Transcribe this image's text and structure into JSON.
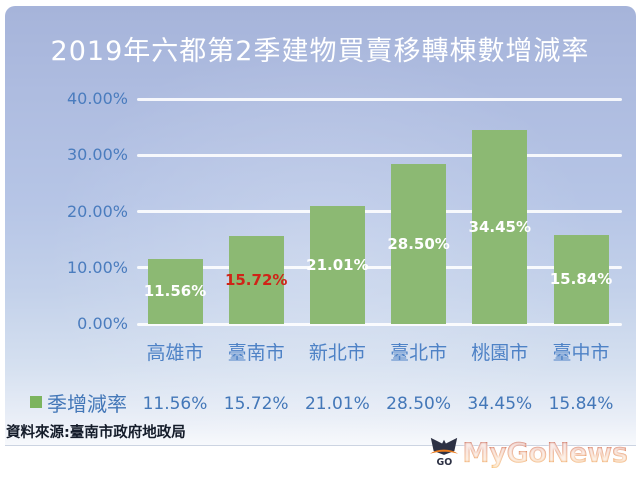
{
  "chart_data": {
    "type": "bar",
    "title": "2019年六都第2季建物買賣移轉棟數增減率",
    "categories": [
      "高雄市",
      "臺南市",
      "新北市",
      "臺北市",
      "桃園市",
      "臺中市"
    ],
    "series": [
      {
        "name": "季增減率",
        "values": [
          11.56,
          15.72,
          21.01,
          28.5,
          34.45,
          15.84
        ]
      }
    ],
    "data_labels": [
      "11.56%",
      "15.72%",
      "21.01%",
      "28.50%",
      "34.45%",
      "15.84%"
    ],
    "data_label_colors": [
      "#ffffff",
      "#d02318",
      "#ffffff",
      "#ffffff",
      "#ffffff",
      "#ffffff"
    ],
    "y_ticks": [
      {
        "label": "40.00%",
        "value": 40
      },
      {
        "label": "30.00%",
        "value": 30
      },
      {
        "label": "20.00%",
        "value": 20
      },
      {
        "label": "10.00%",
        "value": 10
      },
      {
        "label": "0.00%",
        "value": 0
      }
    ],
    "ylim": [
      0,
      40
    ],
    "grid": true,
    "legend_position": "bottom",
    "bar_color": "#8cb973"
  },
  "legend_table": {
    "swatch_color": "#7cb45e",
    "series_label": "季增減率",
    "values": [
      "11.56%",
      "15.72%",
      "21.01%",
      "28.50%",
      "34.45%",
      "15.84%"
    ]
  },
  "source": {
    "text": "資料來源:臺南市政府地政局"
  },
  "branding": {
    "logo_text": "MyGoNews",
    "logo_mark": "GO"
  },
  "colors": {
    "title_text": "#ffffff",
    "axis_text": "#4a7cbe",
    "category_text": "#4e82c6",
    "legend_text": "#4377b8",
    "bar_fill": "#8cb973",
    "highlight_label": "#d02318",
    "logo_orange": "#e06613"
  }
}
